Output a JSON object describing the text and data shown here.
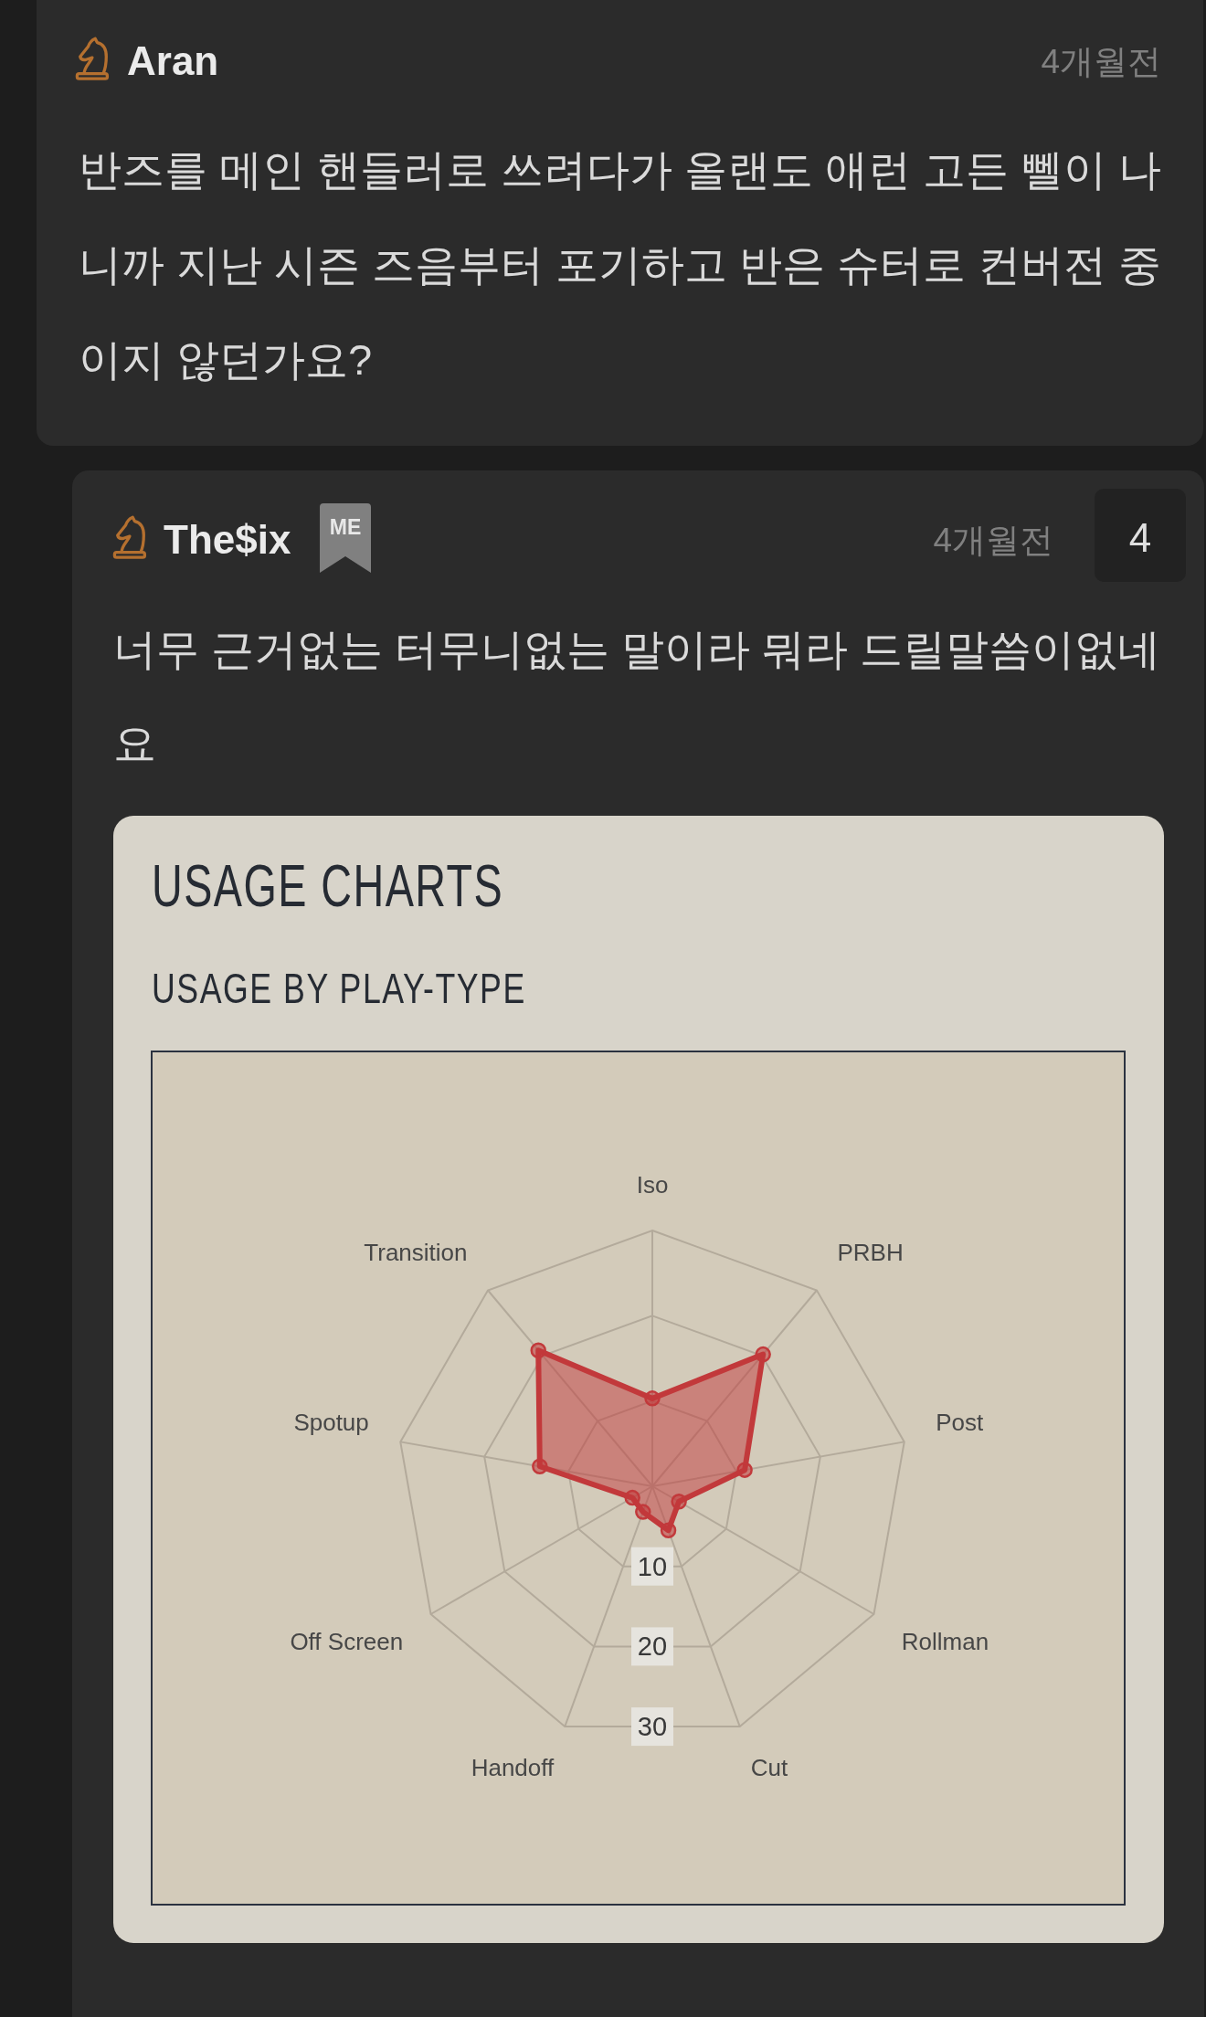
{
  "chart_data": {
    "type": "radar",
    "title": "USAGE CHARTS",
    "subtitle": "USAGE BY PLAY-TYPE",
    "categories": [
      "Iso",
      "PRBH",
      "Post",
      "Rollman",
      "Cut",
      "Handoff",
      "Off Screen",
      "Spotup",
      "Transition"
    ],
    "series": [
      {
        "color": "#c2393b",
        "values": [
          10.3,
          20.2,
          11.0,
          3.6,
          5.5,
          3.2,
          2.7,
          13.4,
          20.8
        ]
      }
    ],
    "ylim": [
      0,
      30
    ],
    "yticks": [
      10,
      20,
      30
    ],
    "grid": true,
    "marker": "circle",
    "annotations": [
      "Aran",
      "4개월전",
      "반즈를 메인 핸들러로 쓰려다가 올랜도 애런 고든 뻴이 나니까 지난 시즌 즈음부터 포기하고 반은 슈터로 컨버전 중이지 않던가요?",
      "The$ix",
      "ME",
      "4개월전",
      "4",
      "너무 근거없는 터무니없는 말이라 뭐라 드릴말씀이없네요"
    ]
  }
}
